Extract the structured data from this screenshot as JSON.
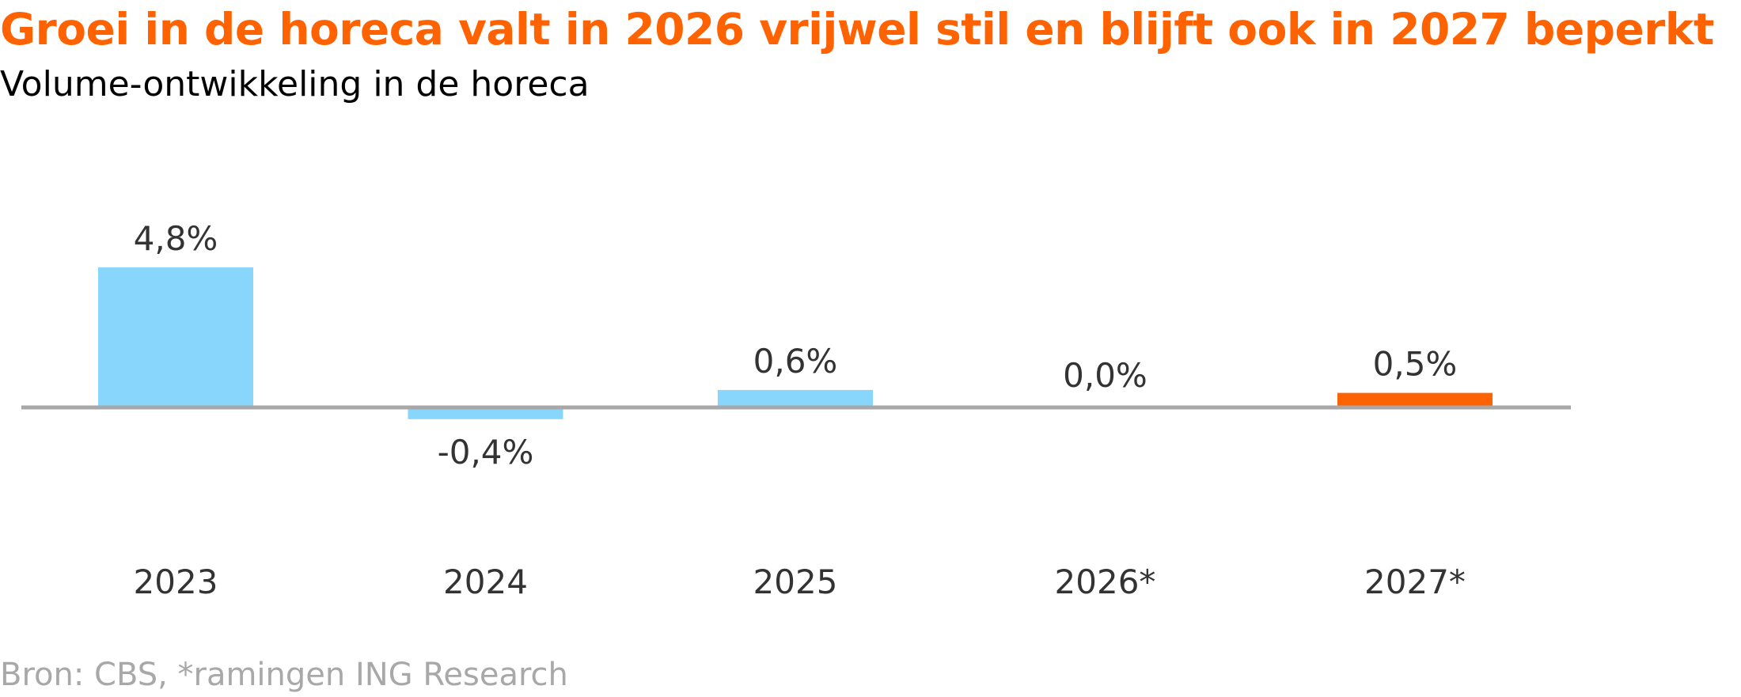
{
  "title": "Groei in de horeca valt in 2026 vrijwel stil en blijft ook in 2027 beperkt",
  "subtitle": "Volume-ontwikkeling in de horeca",
  "source": "Bron: CBS, *ramingen ING Research",
  "colors": {
    "title": "#FF6200",
    "bar": "#89D6FD",
    "highlight": "#FF6200",
    "axis": "#A8A8A8",
    "label": "#333333",
    "source": "#A8A8A8"
  },
  "chart_data": {
    "type": "bar",
    "categories": [
      "2023",
      "2024",
      "2025",
      "2026*",
      "2027*"
    ],
    "values": [
      4.8,
      -0.4,
      0.6,
      0.0,
      0.5
    ],
    "data_labels": [
      "4,8%",
      "-0,4%",
      "0,6%",
      "0,0%",
      "0,5%"
    ],
    "highlight_index": 4,
    "title": "Groei in de horeca valt in 2026 vrijwel stil en blijft ook in 2027 beperkt",
    "subtitle": "Volume-ontwikkeling in de horeca",
    "xlabel": "",
    "ylabel": "",
    "ylim": [
      -0.5,
      5.0
    ],
    "grid": false,
    "legend": "none"
  }
}
